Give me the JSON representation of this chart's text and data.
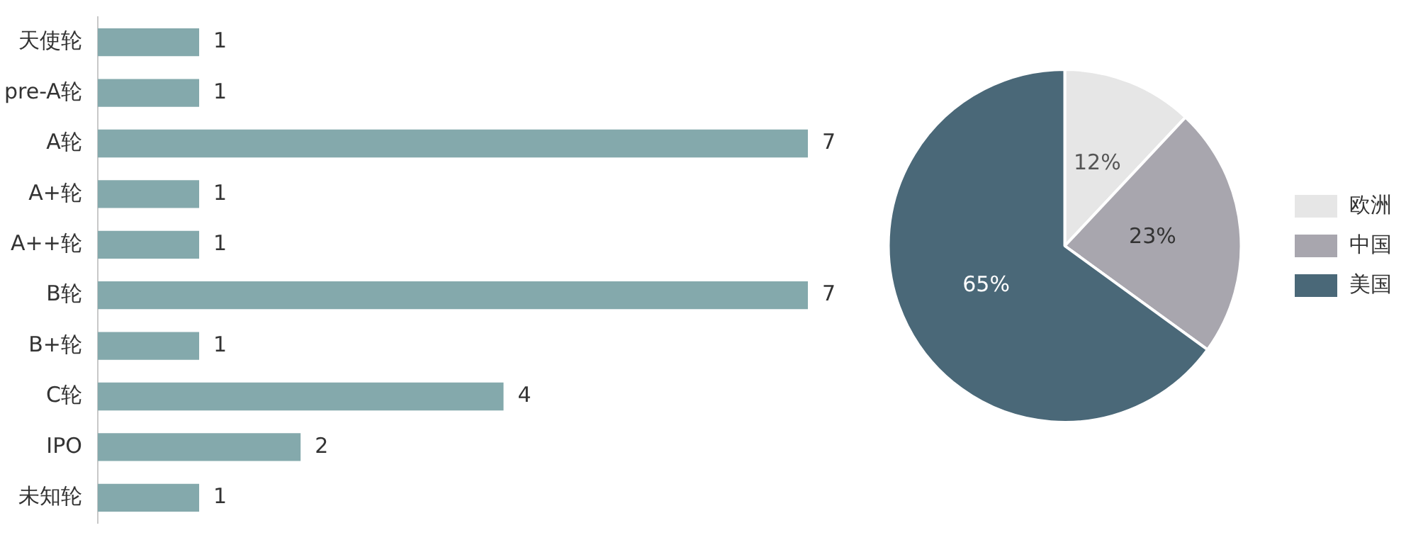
{
  "chart_data": [
    {
      "type": "bar",
      "orientation": "horizontal",
      "categories": [
        "天使轮",
        "pre-A轮",
        "A轮",
        "A+轮",
        "A++轮",
        "B轮",
        "B+轮",
        "C轮",
        "IPO",
        "未知轮"
      ],
      "values": [
        1,
        1,
        7,
        1,
        1,
        7,
        1,
        4,
        2,
        1
      ],
      "color": "#84a9ac",
      "data_labels": true,
      "legend": false,
      "tick_labels": "y"
    },
    {
      "type": "pie",
      "categories": [
        "欧洲",
        "中国",
        "美国"
      ],
      "values": [
        12,
        23,
        65
      ],
      "value_labels": [
        "12%",
        "23%",
        "65%"
      ],
      "colors": [
        "#e6e6e6",
        "#a8a6ae",
        "#4a6878"
      ],
      "legend": "right"
    }
  ]
}
